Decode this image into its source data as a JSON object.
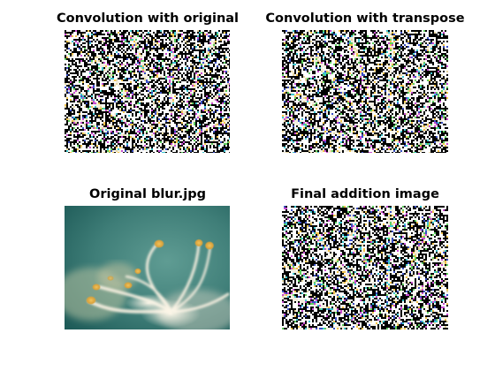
{
  "figure": {
    "panels": [
      {
        "title": "Convolution with original",
        "kind": "noisy"
      },
      {
        "title": "Convolution with transpose",
        "kind": "noisy"
      },
      {
        "title": "Original blur.jpg",
        "kind": "photo"
      },
      {
        "title": "Final addition image",
        "kind": "noisy"
      }
    ]
  },
  "colors": {
    "background": "#ffffff",
    "photo_teal_dark": "#1e5b58",
    "photo_teal_light": "#5f9c93",
    "petal": "#f4eee2",
    "stamen": "#e8b54a",
    "noise_dark": "#000000",
    "noise_light": "#ffffff"
  }
}
